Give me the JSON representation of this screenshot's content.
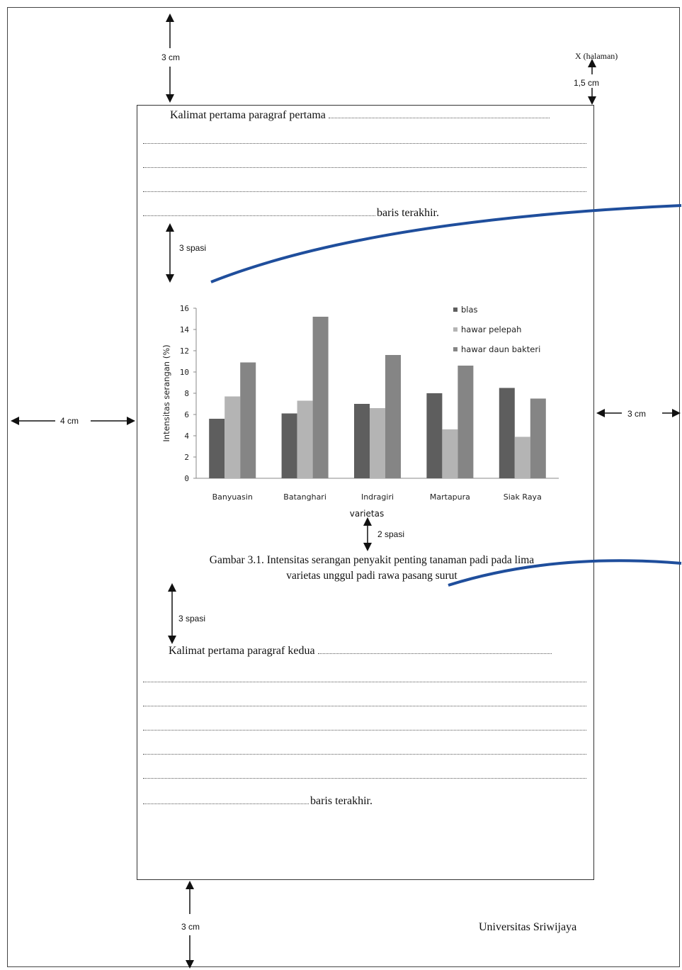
{
  "measures": {
    "top_margin": "3 cm",
    "page_number": "X (halaman)",
    "page_number_offset": "1,5 cm",
    "left_margin": "4 cm",
    "right_margin": "3 cm",
    "bottom_margin": "3 cm",
    "space_before_figure": "3 spasi",
    "space_before_caption": "2 spasi",
    "space_after_caption": "3 spasi"
  },
  "text": {
    "para1_first": "Kalimat pertama paragraf pertama",
    "para1_last": "baris terakhir.",
    "para2_first": "Kalimat pertama paragraf kedua",
    "para2_last": "baris terakhir.",
    "caption_line1": "Gambar 3.1. Intensitas serangan  penyakit penting tanaman padi  pada lima",
    "caption_line2": "varietas unggul padi rawa pasang surut",
    "footer": "Universitas Sriwijaya"
  },
  "chart_data": {
    "type": "bar",
    "categories": [
      "Banyuasin",
      "Batanghari",
      "Indragiri",
      "Martapura",
      "Siak Raya"
    ],
    "series": [
      {
        "name": "blas",
        "values": [
          5.6,
          6.1,
          7.0,
          8.0,
          8.5
        ],
        "color": "#5e5e5e"
      },
      {
        "name": "hawar pelepah",
        "values": [
          7.7,
          7.3,
          6.6,
          4.6,
          3.9
        ],
        "color": "#b4b4b4"
      },
      {
        "name": "hawar daun bakteri",
        "values": [
          10.9,
          15.2,
          11.6,
          10.6,
          7.5
        ],
        "color": "#858585"
      }
    ],
    "xlabel": "varietas",
    "ylabel": "Intensitas serangan (%)",
    "ylim": [
      0,
      16
    ],
    "yticks": [
      "0",
      "2",
      "4",
      "6",
      "8",
      "10",
      "12",
      "14",
      "16"
    ],
    "legend_position": "top-right",
    "grid": false
  },
  "colors": {
    "annotation_line": "#1f4e9c",
    "border": "#333333"
  }
}
